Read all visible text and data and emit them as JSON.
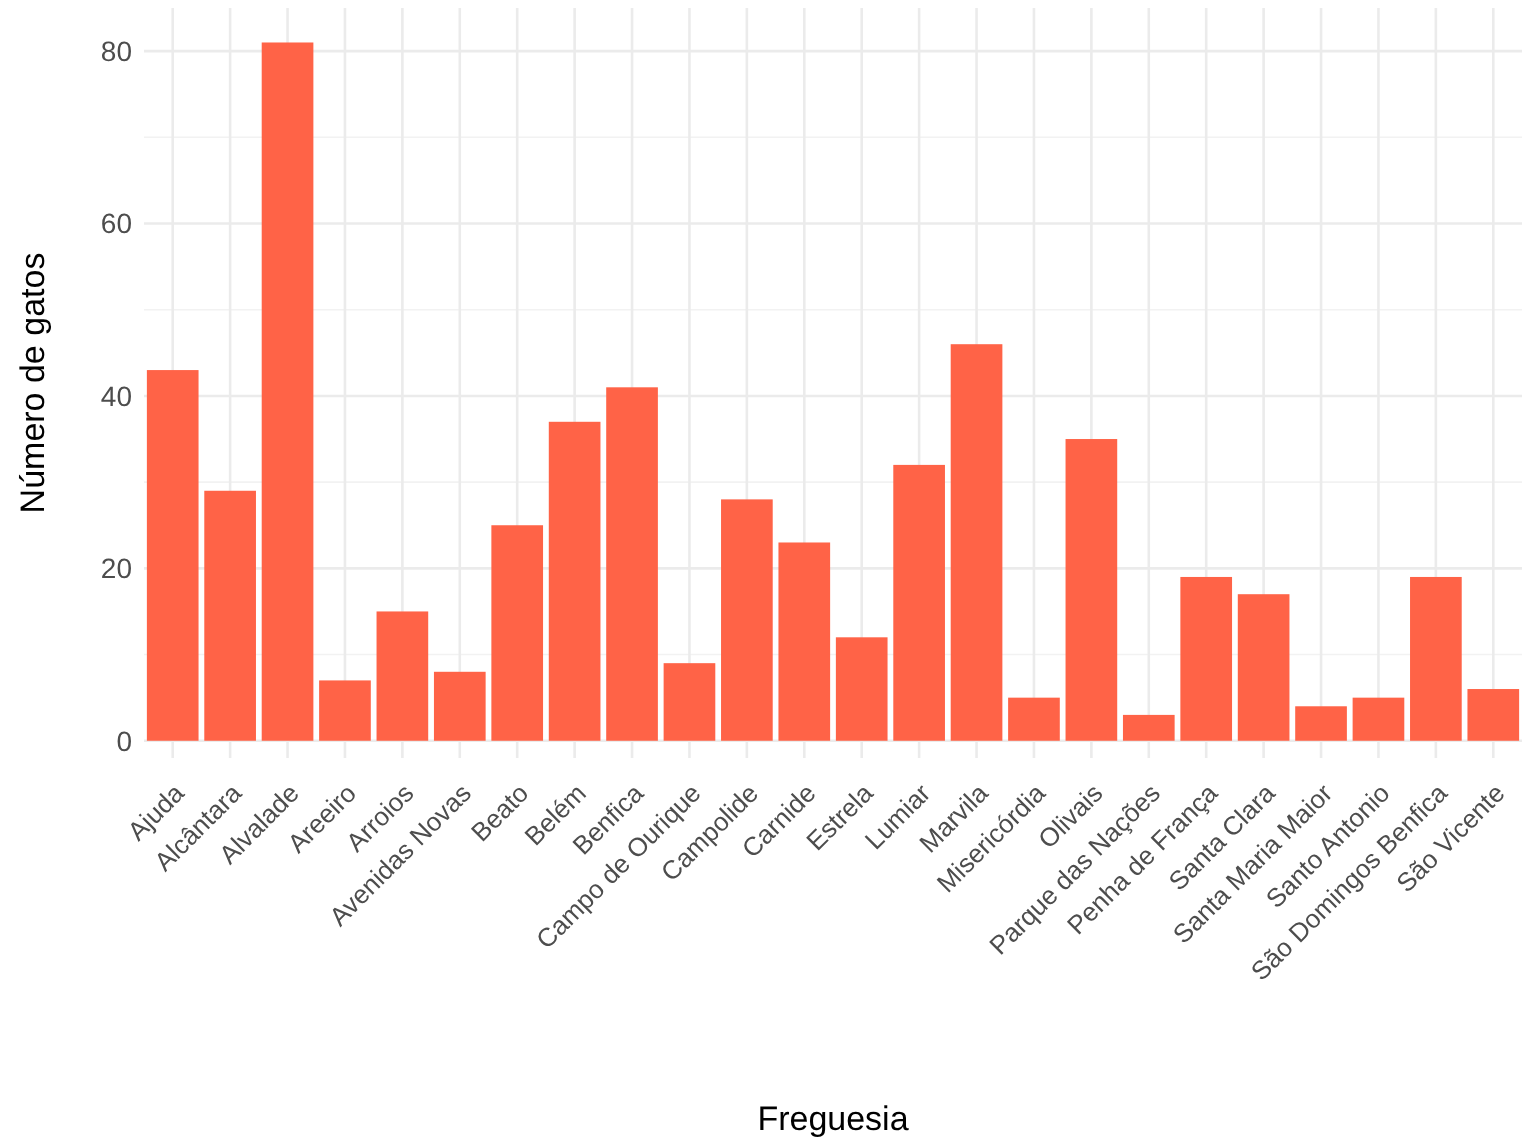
{
  "chart_data": {
    "type": "bar",
    "xlabel": "Freguesia",
    "ylabel": "Número de gatos",
    "categories": [
      "Ajuda",
      "Alcântara",
      "Alvalade",
      "Areeiro",
      "Arroios",
      "Avenidas Novas",
      "Beato",
      "Belém",
      "Benfica",
      "Campo de Ourique",
      "Campolide",
      "Carnide",
      "Estrela",
      "Lumiar",
      "Marvila",
      "Misericórdia",
      "Olivais",
      "Parque das Nações",
      "Penha de França",
      "Santa Clara",
      "Santa Maria Maior",
      "Santo Antonio",
      "São Domingos Benfica",
      "São Vicente"
    ],
    "values": [
      43,
      29,
      81,
      7,
      15,
      8,
      25,
      37,
      41,
      9,
      28,
      23,
      12,
      32,
      46,
      5,
      35,
      3,
      19,
      17,
      4,
      5,
      19,
      6
    ],
    "color": "#ff6347",
    "ylim": [
      -2,
      85
    ],
    "yticks": [
      0,
      20,
      40,
      60,
      80
    ],
    "grid": true
  }
}
